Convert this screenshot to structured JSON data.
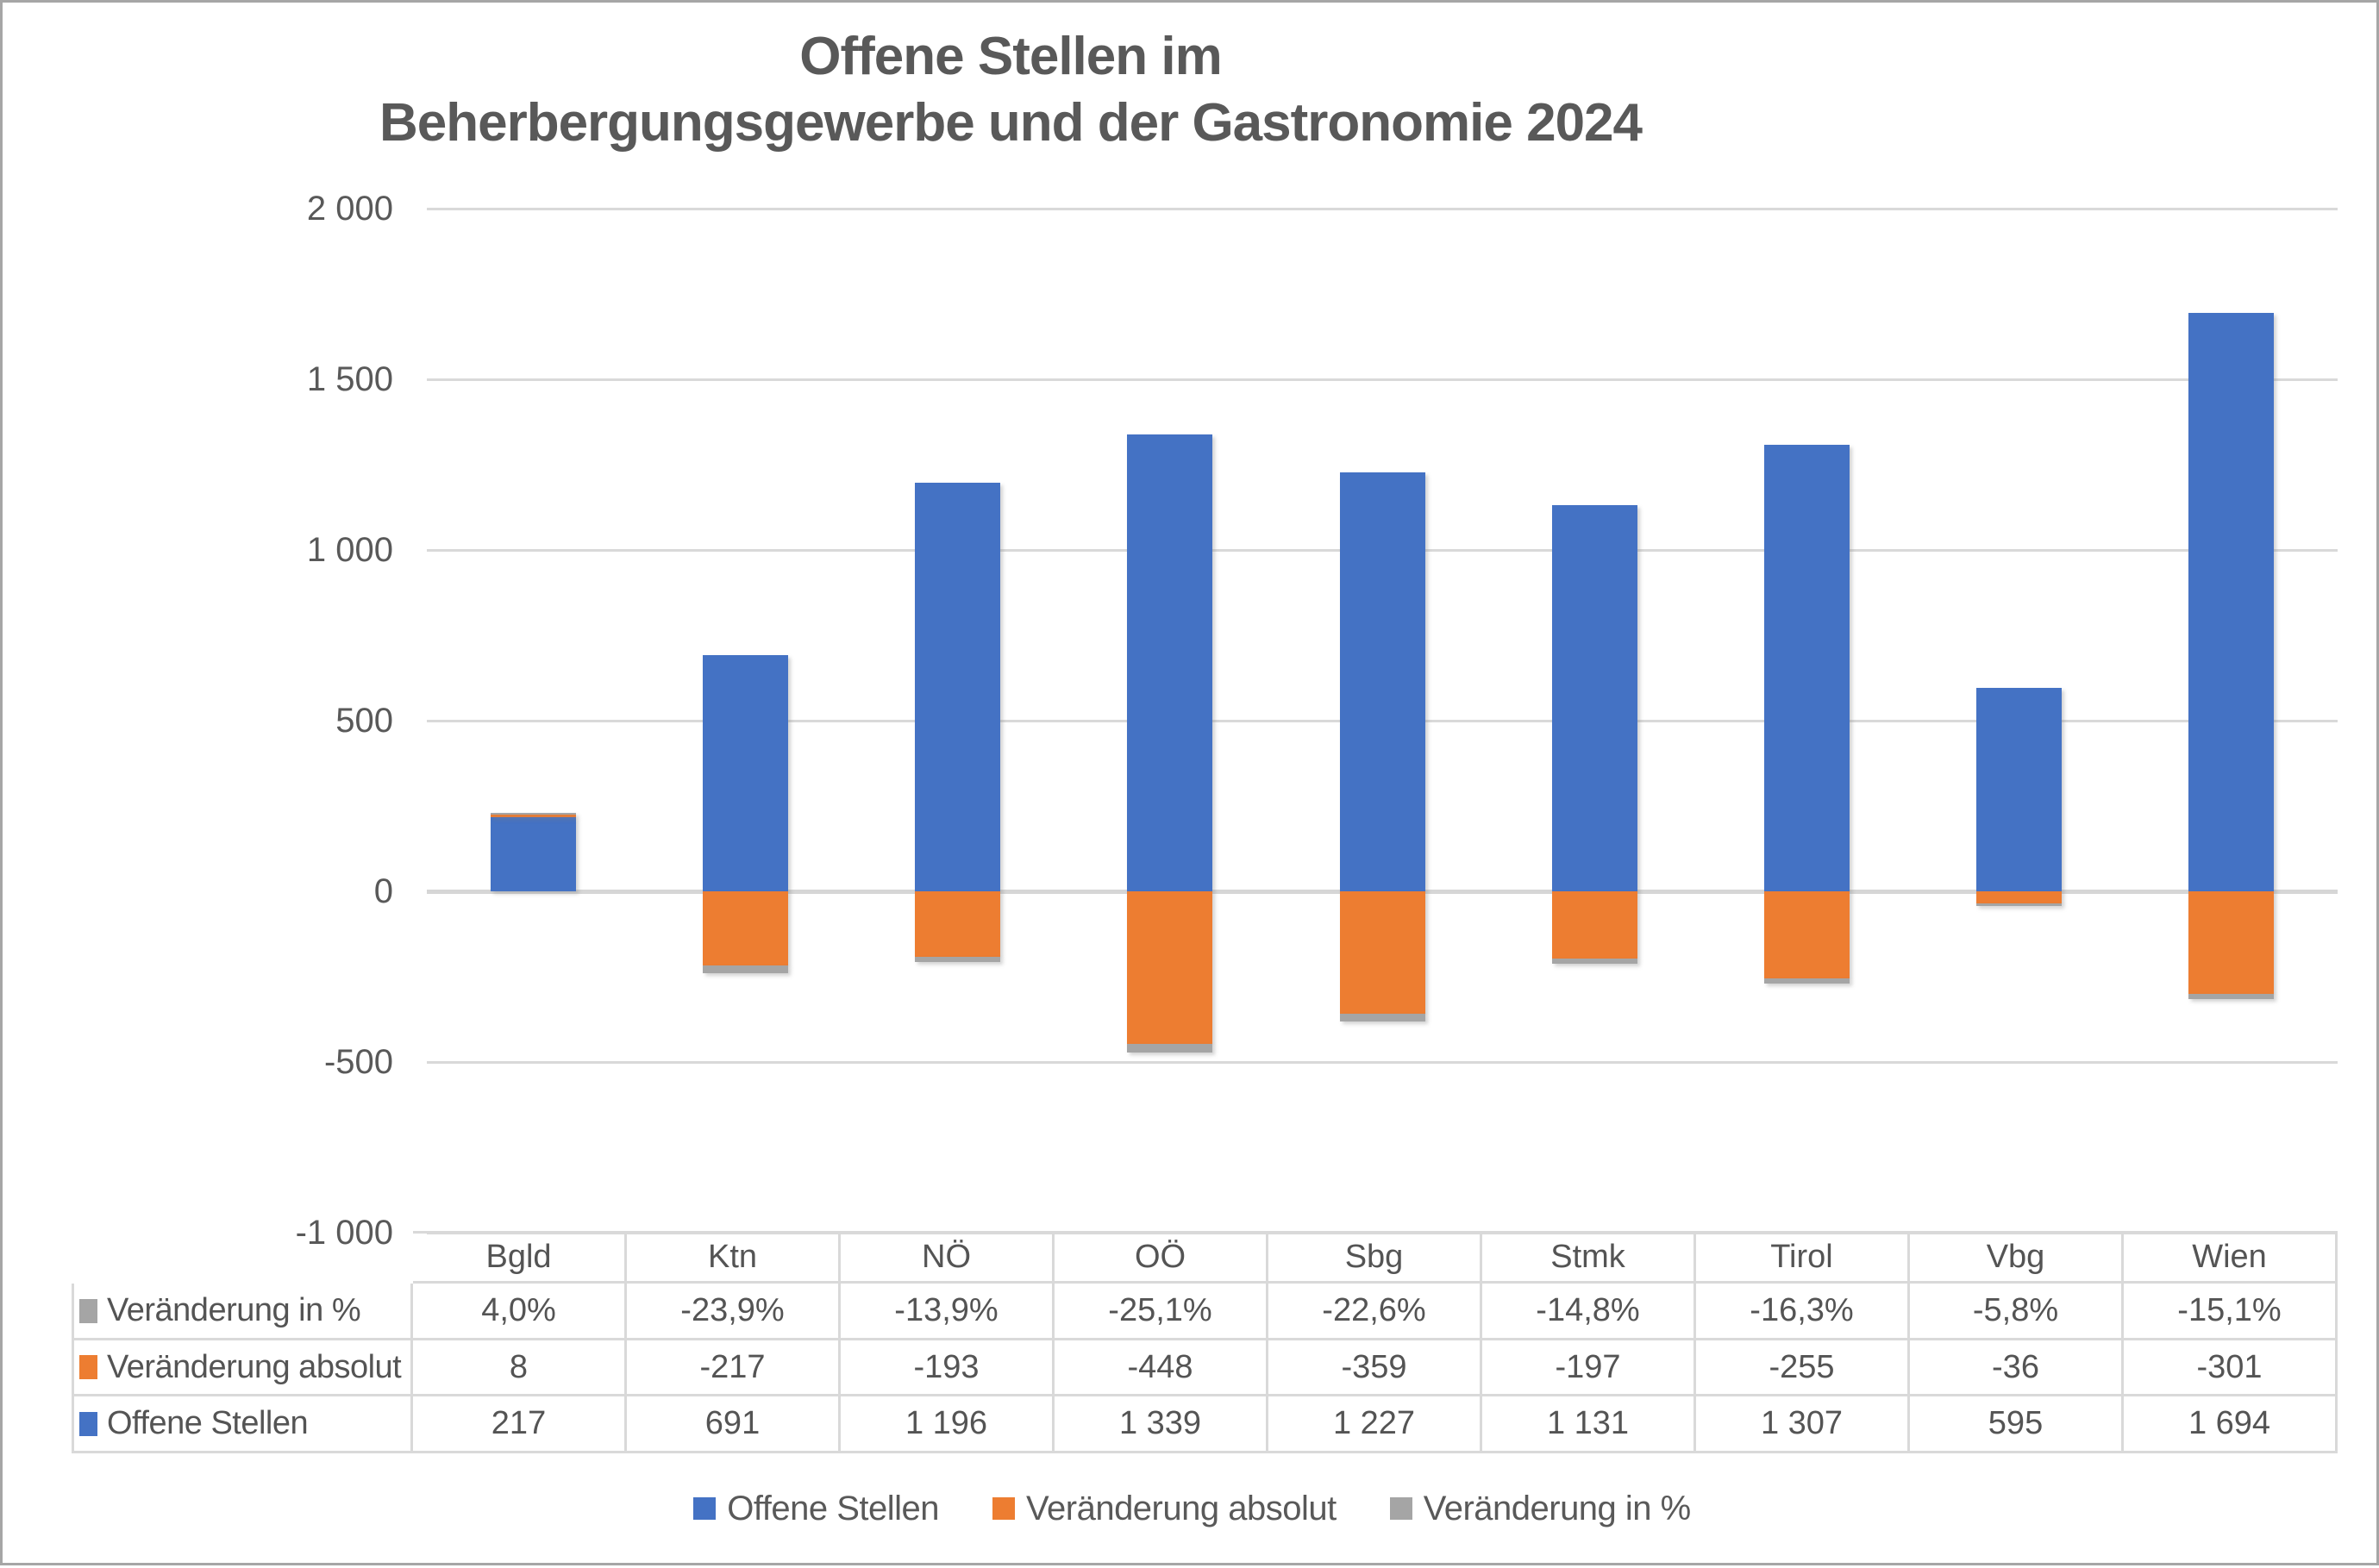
{
  "title": {
    "line1": "Offene Stellen im",
    "line2": "Beherbergungsgewerbe und der Gastronomie 2024"
  },
  "chart_data": {
    "type": "bar",
    "stacked": true,
    "title": "Offene Stellen im Beherbergungsgewerbe und der Gastronomie 2024",
    "categories": [
      "Bgld",
      "Ktn",
      "NÖ",
      "OÖ",
      "Sbg",
      "Stmk",
      "Tirol",
      "Vbg",
      "Wien"
    ],
    "series": [
      {
        "name": "Offene Stellen",
        "color": "#4472C4",
        "values": [
          217,
          691,
          1196,
          1339,
          1227,
          1131,
          1307,
          595,
          1694
        ]
      },
      {
        "name": "Veränderung absolut",
        "color": "#ED7D31",
        "values": [
          8,
          -217,
          -193,
          -448,
          -359,
          -197,
          -255,
          -36,
          -301
        ]
      },
      {
        "name": "Veränderung in %",
        "color": "#A5A5A5",
        "values": [
          4.0,
          -23.9,
          -13.9,
          -25.1,
          -22.6,
          -14.8,
          -16.3,
          -5.8,
          -15.1
        ]
      }
    ],
    "y_axis": {
      "min": -1000,
      "max": 2000,
      "step": 500,
      "ticks": [
        {
          "label": "2 000",
          "value": 2000
        },
        {
          "label": "1 500",
          "value": 1500
        },
        {
          "label": "1 000",
          "value": 1000
        },
        {
          "label": "500",
          "value": 500
        },
        {
          "label": "0",
          "value": 0
        },
        {
          "label": "-500",
          "value": -500
        },
        {
          "label": "-1 000",
          "value": -1000
        }
      ]
    },
    "grid": true,
    "legend_position": "bottom"
  },
  "data_table": {
    "column_headers": [
      "Bgld",
      "Ktn",
      "NÖ",
      "OÖ",
      "Sbg",
      "Stmk",
      "Tirol",
      "Vbg",
      "Wien"
    ],
    "rows": [
      {
        "label": "Veränderung in %",
        "key_color": "#A5A5A5",
        "values": [
          "4,0%",
          "-23,9%",
          "-13,9%",
          "-25,1%",
          "-22,6%",
          "-14,8%",
          "-16,3%",
          "-5,8%",
          "-15,1%"
        ]
      },
      {
        "label": "Veränderung absolut",
        "key_color": "#ED7D31",
        "values": [
          "8",
          "-217",
          "-193",
          "-448",
          "-359",
          "-197",
          "-255",
          "-36",
          "-301"
        ]
      },
      {
        "label": "Offene Stellen",
        "key_color": "#4472C4",
        "values": [
          "217",
          "691",
          "1 196",
          "1 339",
          "1 227",
          "1 131",
          "1 307",
          "595",
          "1 694"
        ]
      }
    ]
  },
  "legend": {
    "items": [
      {
        "label": "Offene Stellen",
        "color": "#4472C4"
      },
      {
        "label": "Veränderung absolut",
        "color": "#ED7D31"
      },
      {
        "label": "Veränderung in %",
        "color": "#A5A5A5"
      }
    ]
  },
  "colors": {
    "series_blue": "#4472C4",
    "series_orange": "#ED7D31",
    "series_gray": "#A5A5A5",
    "gridline": "#D9D9D9",
    "text": "#595959",
    "frame_border": "#A6A6A6"
  }
}
